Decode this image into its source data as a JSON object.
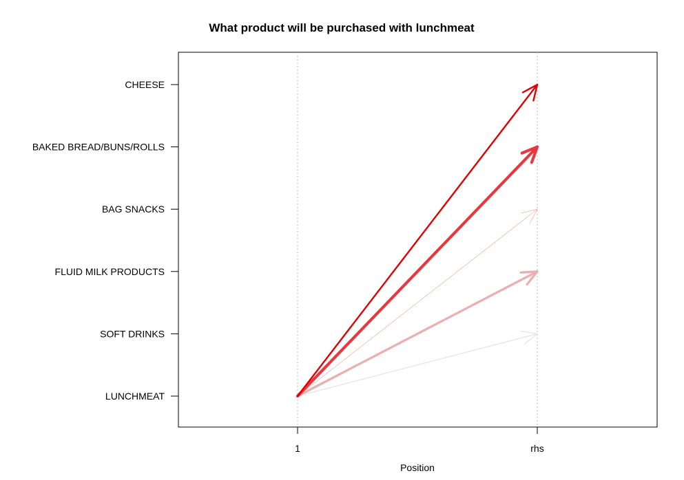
{
  "chart_data": {
    "type": "line",
    "title": "What product will be purchased with lunchmeat",
    "xlabel": "Position",
    "ylabel": "",
    "x_categories": [
      "1",
      "rhs"
    ],
    "y_categories": [
      "LUNCHMEAT",
      "SOFT DRINKS",
      "FLUID MILK PRODUCTS",
      "BAG SNACKS",
      "BAKED BREAD/BUNS/ROLLS",
      "CHEESE"
    ],
    "grid": "vertical dotted at x positions",
    "rules": [
      {
        "lhs": "LUNCHMEAT",
        "rhs": "CHEESE",
        "color": "#e00000",
        "strength": 0.95,
        "width_level": 3
      },
      {
        "lhs": "LUNCHMEAT",
        "rhs": "BAKED BREAD/BUNS/ROLLS",
        "color": "#e8383f",
        "strength": 0.8,
        "width_level": 5
      },
      {
        "lhs": "LUNCHMEAT",
        "rhs": "BAG SNACKS",
        "color": "#e8a0a0",
        "strength": 0.45,
        "width_level": 1
      },
      {
        "lhs": "LUNCHMEAT",
        "rhs": "FLUID MILK PRODUCTS",
        "color": "#eab0b0",
        "strength": 0.35,
        "width_level": 4
      },
      {
        "lhs": "LUNCHMEAT",
        "rhs": "SOFT DRINKS",
        "color": "#e8e8e8",
        "strength": 0.1,
        "width_level": 2
      }
    ]
  }
}
